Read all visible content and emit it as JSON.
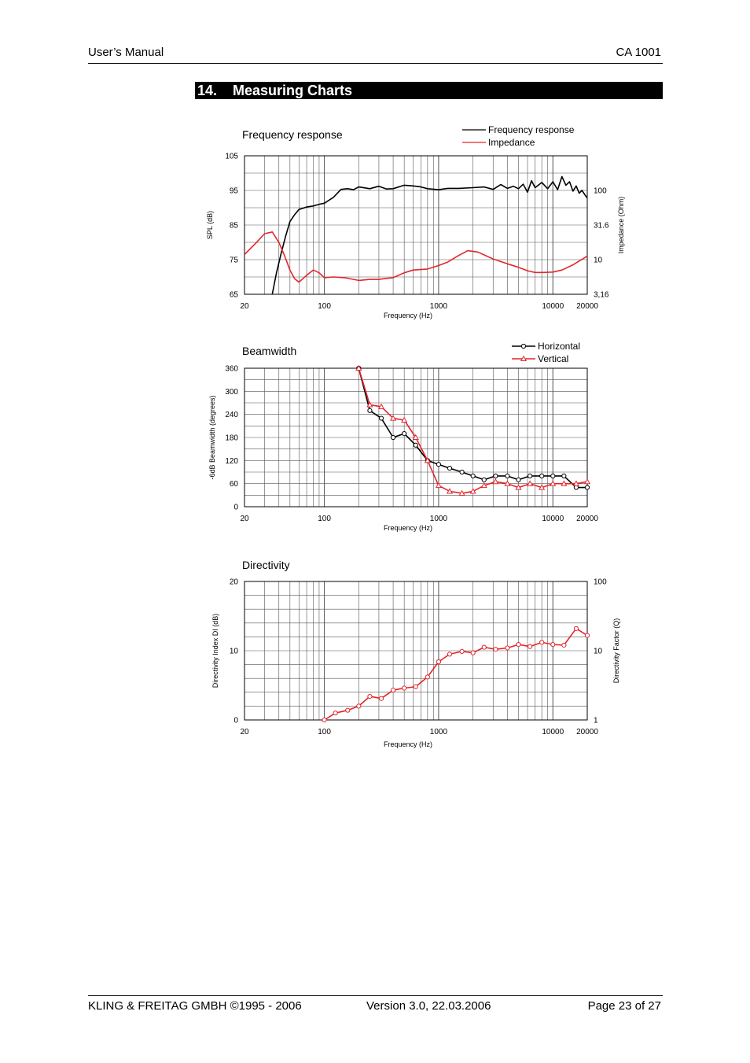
{
  "header": {
    "left": "User’s Manual",
    "right": "CA 1001"
  },
  "section": {
    "number": "14.",
    "title": "Measuring Charts"
  },
  "footer": {
    "left": "KLING & FREITAG GMBH ©1995 - 2006",
    "center": "Version 3.0, 22.03.2006",
    "right": "Page 23 of 27"
  },
  "colors": {
    "black_series": "#000000",
    "red_series": "#e3262b",
    "grid": "#555555"
  },
  "chart_data": [
    {
      "type": "line",
      "title": "Frequency response",
      "xlabel": "Frequency (Hz)",
      "ylabel": "SPL (dB)",
      "y2label": "Impedance (Ohm)",
      "xscale": "log",
      "xlim": [
        20,
        20000
      ],
      "ylim": [
        65,
        105
      ],
      "xticks": [
        "20",
        "100",
        "1000",
        "10000",
        "20000"
      ],
      "yticks": [
        "65",
        "75",
        "85",
        "95",
        "105"
      ],
      "y2ticks": [
        "3,16",
        "10",
        "31.6",
        "100"
      ],
      "legend": [
        "Frequency response",
        "Impedance"
      ],
      "series": [
        {
          "name": "Frequency response",
          "color": "#000000",
          "x": [
            35,
            38,
            42,
            46,
            50,
            55,
            60,
            70,
            80,
            90,
            100,
            120,
            140,
            160,
            180,
            200,
            250,
            300,
            350,
            400,
            500,
            600,
            700,
            800,
            1000,
            1200,
            1500,
            2000,
            2500,
            3000,
            3500,
            4000,
            4500,
            5000,
            5500,
            6000,
            6500,
            7000,
            8000,
            9000,
            10000,
            11000,
            12000,
            13000,
            14000,
            15000,
            16000,
            17000,
            18000,
            19000,
            20000
          ],
          "y": [
            65,
            71,
            77,
            82,
            86,
            88,
            89.5,
            90.2,
            90.5,
            91,
            91.3,
            93,
            95.3,
            95.5,
            95.2,
            96,
            95.5,
            96.2,
            95.4,
            95.5,
            96.5,
            96.3,
            96,
            95.5,
            95.2,
            95.6,
            95.6,
            95.8,
            96,
            95.3,
            96.7,
            95.6,
            96.2,
            95.5,
            96.8,
            94.5,
            97.8,
            95.8,
            97.3,
            95.5,
            97.5,
            95.2,
            99,
            96.5,
            97.5,
            94.8,
            96.3,
            94.2,
            95,
            93.8,
            92.8
          ]
        },
        {
          "name": "Impedance",
          "color": "#e3262b",
          "x": [
            20,
            25,
            30,
            35,
            40,
            45,
            50,
            55,
            60,
            70,
            80,
            90,
            100,
            120,
            150,
            200,
            250,
            300,
            350,
            400,
            500,
            600,
            800,
            1000,
            1200,
            1500,
            1800,
            2200,
            3000,
            4000,
            5000,
            6000,
            7000,
            8000,
            10000,
            12000,
            15000,
            20000
          ],
          "y": [
            76.5,
            79.7,
            82.5,
            83,
            80,
            76,
            72,
            69.5,
            68.5,
            70.5,
            72,
            71.2,
            69.8,
            70,
            69.8,
            69,
            69.3,
            69.3,
            69.6,
            69.8,
            71.2,
            72,
            72.3,
            73.3,
            74.3,
            76.2,
            77.6,
            77.2,
            75.2,
            73.8,
            72.8,
            71.8,
            71.3,
            71.3,
            71.4,
            72,
            73.5,
            76
          ]
        }
      ]
    },
    {
      "type": "line",
      "title": "Beamwidth",
      "xlabel": "Frequency (Hz)",
      "ylabel": "-6dB Beamwidth (degrees)",
      "xscale": "log",
      "xlim": [
        20,
        20000
      ],
      "ylim": [
        0,
        360
      ],
      "xticks": [
        "20",
        "100",
        "1000",
        "10000",
        "20000"
      ],
      "yticks": [
        "0",
        "60",
        "120",
        "180",
        "240",
        "300",
        "360"
      ],
      "legend": [
        "Horizontal",
        "Vertical"
      ],
      "x": [
        200,
        250,
        315,
        400,
        500,
        630,
        800,
        1000,
        1250,
        1600,
        2000,
        2500,
        3150,
        4000,
        5000,
        6300,
        8000,
        10000,
        12500,
        16000,
        20000
      ],
      "series": [
        {
          "name": "Horizontal",
          "color": "#000000",
          "marker": "circle",
          "values": [
            360,
            250,
            230,
            180,
            190,
            160,
            120,
            110,
            100,
            90,
            80,
            70,
            80,
            80,
            70,
            80,
            80,
            80,
            80,
            50,
            50
          ]
        },
        {
          "name": "Vertical",
          "color": "#e3262b",
          "marker": "triangle",
          "values": [
            360,
            265,
            260,
            230,
            225,
            180,
            120,
            55,
            40,
            35,
            40,
            55,
            65,
            60,
            50,
            60,
            50,
            60,
            60,
            60,
            65
          ]
        }
      ]
    },
    {
      "type": "line",
      "title": "Directivity",
      "xlabel": "Frequency (Hz)",
      "ylabel": "Directivity Index DI (dB)",
      "y2label": "Directivity Factor (Q)",
      "xscale": "log",
      "xlim": [
        20,
        20000
      ],
      "ylim": [
        0,
        20
      ],
      "xticks": [
        "20",
        "100",
        "1000",
        "10000",
        "20000"
      ],
      "yticks": [
        "0",
        "10",
        "20"
      ],
      "y2ticks": [
        "1",
        "10",
        "100"
      ],
      "x": [
        100,
        125,
        160,
        200,
        250,
        315,
        400,
        500,
        630,
        800,
        1000,
        1250,
        1600,
        2000,
        2500,
        3150,
        4000,
        5000,
        6300,
        8000,
        10000,
        12500,
        16000,
        20000
      ],
      "series": [
        {
          "name": "Directivity Index",
          "color": "#e3262b",
          "marker": "circle",
          "values": [
            0,
            1,
            1.4,
            2,
            3.4,
            3.1,
            4.3,
            4.6,
            4.8,
            6.2,
            8.4,
            9.5,
            9.9,
            9.7,
            10.5,
            10.2,
            10.4,
            10.9,
            10.6,
            11.2,
            10.9,
            10.8,
            13.2,
            12.2
          ]
        }
      ]
    }
  ]
}
